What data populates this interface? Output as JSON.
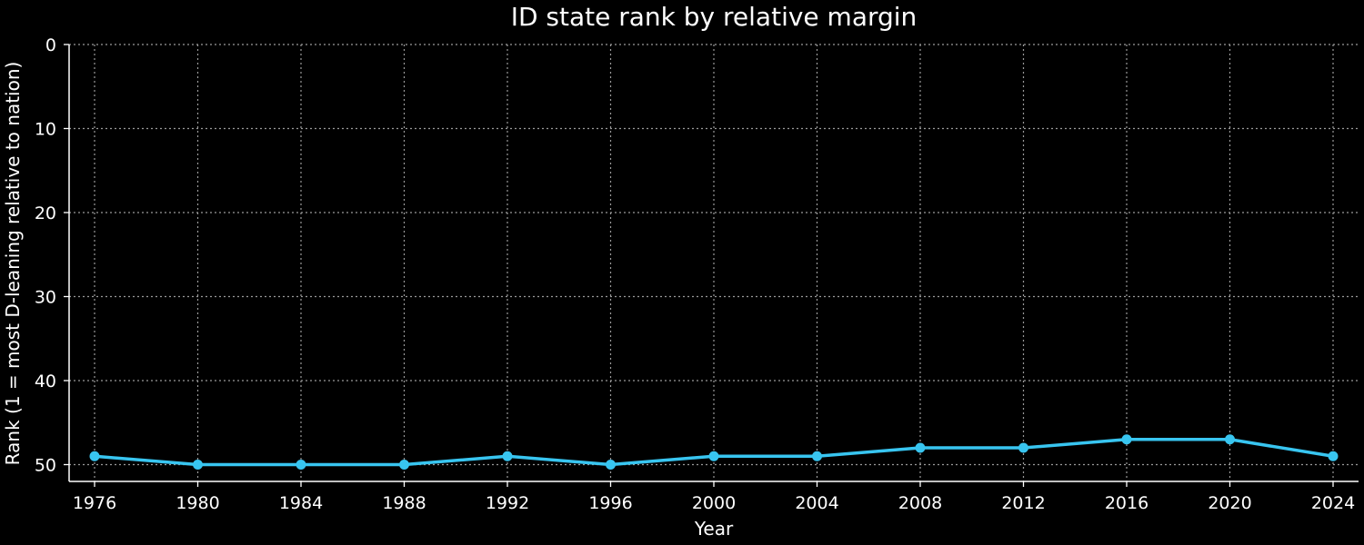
{
  "chart_data": {
    "type": "line",
    "title": "ID state rank by relative margin",
    "xlabel": "Year",
    "ylabel": "Rank (1 = most D-leaning relative to nation)",
    "x": [
      1976,
      1980,
      1984,
      1988,
      1992,
      1996,
      2000,
      2004,
      2008,
      2012,
      2016,
      2020,
      2024
    ],
    "x_ticks": [
      "1976",
      "1980",
      "1984",
      "1988",
      "1992",
      "1996",
      "2000",
      "2004",
      "2008",
      "2012",
      "2016",
      "2020",
      "2024"
    ],
    "y_ticks": [
      "0",
      "10",
      "20",
      "30",
      "40",
      "50"
    ],
    "y_tick_values": [
      0,
      10,
      20,
      30,
      40,
      50
    ],
    "ylim": [
      0,
      52
    ],
    "y_inverted": true,
    "grid": true,
    "series": [
      {
        "values": [
          49,
          50,
          50,
          50,
          49,
          50,
          49,
          49,
          48,
          48,
          47,
          47,
          49
        ],
        "color": "#38c5f0"
      }
    ]
  }
}
